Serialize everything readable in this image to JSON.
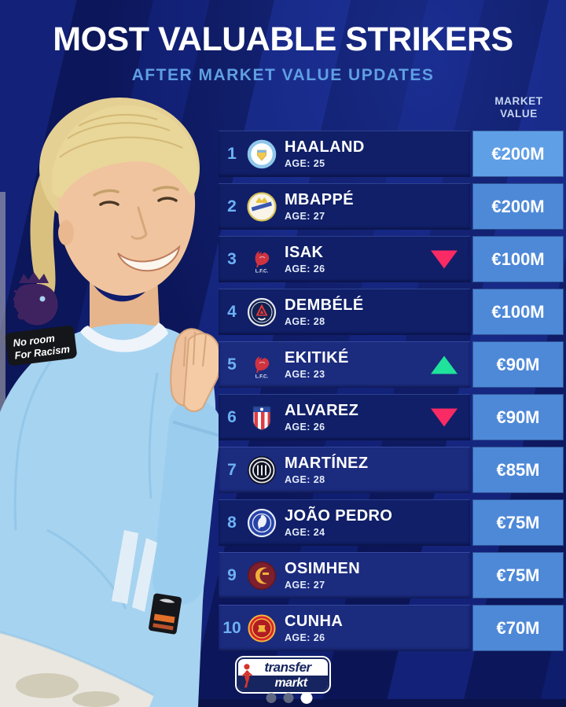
{
  "header": {
    "title": "MOST VALUABLE STRIKERS",
    "subtitle": "AFTER MARKET VALUE UPDATES",
    "value_col_label_line1": "MARKET",
    "value_col_label_line2": "VALUE"
  },
  "table": {
    "rows": [
      {
        "rank": "1",
        "name": "HAALAND",
        "age": "AGE: 25",
        "club_id": "mancity",
        "club": "Manchester City",
        "value": "€200M",
        "trend": "none"
      },
      {
        "rank": "2",
        "name": "MBAPPÉ",
        "age": "AGE: 27",
        "club_id": "realmadrid",
        "club": "Real Madrid",
        "value": "€200M",
        "trend": "none"
      },
      {
        "rank": "3",
        "name": "ISAK",
        "age": "AGE: 26",
        "club_id": "liverpool",
        "club": "Liverpool",
        "value": "€100M",
        "trend": "down"
      },
      {
        "rank": "4",
        "name": "DEMBÉLÉ",
        "age": "AGE: 28",
        "club_id": "psg",
        "club": "Paris Saint-Germain",
        "value": "€100M",
        "trend": "none"
      },
      {
        "rank": "5",
        "name": "EKITIKÉ",
        "age": "AGE: 23",
        "club_id": "liverpool",
        "club": "Liverpool",
        "value": "€90M",
        "trend": "up"
      },
      {
        "rank": "6",
        "name": "ALVAREZ",
        "age": "AGE: 26",
        "club_id": "atletico",
        "club": "Atlético Madrid",
        "value": "€90M",
        "trend": "down"
      },
      {
        "rank": "7",
        "name": "MARTÍNEZ",
        "age": "AGE: 28",
        "club_id": "inter",
        "club": "Inter Milan",
        "value": "€85M",
        "trend": "none"
      },
      {
        "rank": "8",
        "name": "JOÃO PEDRO",
        "age": "AGE: 24",
        "club_id": "chelsea",
        "club": "Chelsea",
        "value": "€75M",
        "trend": "none"
      },
      {
        "rank": "9",
        "name": "OSIMHEN",
        "age": "AGE: 27",
        "club_id": "galatasaray",
        "club": "Galatasaray",
        "value": "€75M",
        "trend": "none"
      },
      {
        "rank": "10",
        "name": "CUNHA",
        "age": "AGE: 26",
        "club_id": "manutd",
        "club": "Manchester United",
        "value": "€70M",
        "trend": "none"
      }
    ]
  },
  "player_photo": {
    "sleeve_patch_line1": "No room",
    "sleeve_patch_line2": "For Racism",
    "liverpool_badge_text": "L.F.C."
  },
  "footer": {
    "logo_line1": "transfer",
    "logo_line2": "markt"
  },
  "colors": {
    "background": "#0c1760",
    "row_dark": "#101f68",
    "row_light": "#1b2b7e",
    "value_cell": "#4e89d8",
    "value_cell_top": "#5f9fe6",
    "rank_text": "#6db1f4",
    "subtitle": "#5f9fe3",
    "trend_up": "#1fe29b",
    "trend_down": "#fa2a64"
  }
}
